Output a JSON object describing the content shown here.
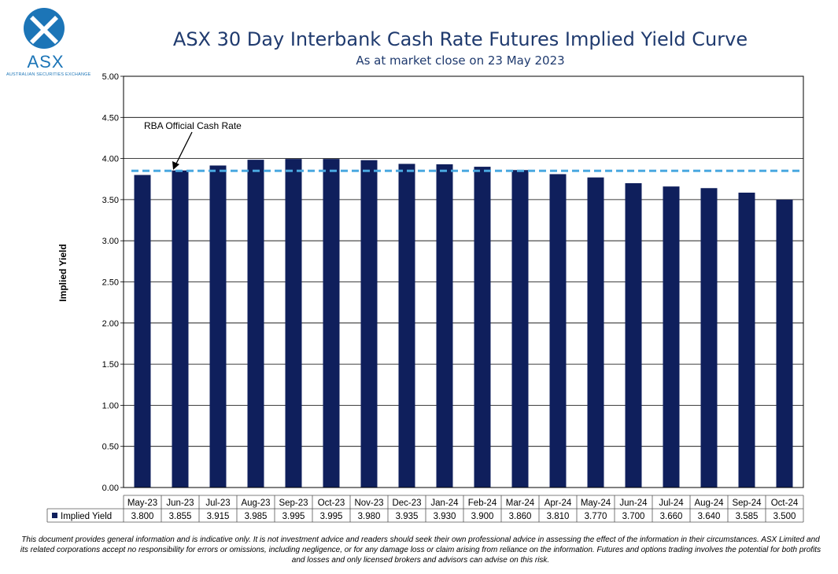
{
  "logo": {
    "word": "ASX",
    "sub": "AUSTRALIAN SECURITIES EXCHANGE"
  },
  "chart_data": {
    "type": "bar",
    "title": "ASX 30 Day Interbank Cash Rate Futures Implied Yield Curve",
    "subtitle": "As at market close on 23 May 2023",
    "ylabel": "Implied Yield",
    "ylim": [
      0,
      5
    ],
    "yticks": [
      "0.00",
      "0.50",
      "1.00",
      "1.50",
      "2.00",
      "2.50",
      "3.00",
      "3.50",
      "4.00",
      "4.50",
      "5.00"
    ],
    "grid": true,
    "categories": [
      "May-23",
      "Jun-23",
      "Jul-23",
      "Aug-23",
      "Sep-23",
      "Oct-23",
      "Nov-23",
      "Dec-23",
      "Jan-24",
      "Feb-24",
      "Mar-24",
      "Apr-24",
      "May-24",
      "Jun-24",
      "Jul-24",
      "Aug-24",
      "Sep-24",
      "Oct-24"
    ],
    "series": [
      {
        "name": "Implied Yield",
        "values": [
          3.8,
          3.855,
          3.915,
          3.985,
          3.995,
          3.995,
          3.98,
          3.935,
          3.93,
          3.9,
          3.86,
          3.81,
          3.77,
          3.7,
          3.66,
          3.64,
          3.585,
          3.5
        ],
        "value_labels": [
          "3.800",
          "3.855",
          "3.915",
          "3.985",
          "3.995",
          "3.995",
          "3.980",
          "3.935",
          "3.930",
          "3.900",
          "3.860",
          "3.810",
          "3.770",
          "3.700",
          "3.660",
          "3.640",
          "3.585",
          "3.500"
        ]
      }
    ],
    "reference_line": {
      "label": "RBA Official Cash Rate",
      "value": 3.85
    },
    "data_table": {
      "legend_label": "Implied Yield"
    },
    "colors": {
      "bar": "#0f1f5c",
      "reference": "#4aa8e0",
      "title": "#1f3a6e"
    }
  },
  "disclaimer": "This document provides general information and is indicative only. It is not investment advice and readers should seek their own professional advice in assessing the effect of the information in their circumstances. ASX Limited and its related corporations accept no responsibility for errors or omissions, including negligence, or for any damage loss or claim arising from reliance on the information. Futures and options trading involves the potential for both profits and losses and only licensed brokers and advisors can advise on this risk."
}
